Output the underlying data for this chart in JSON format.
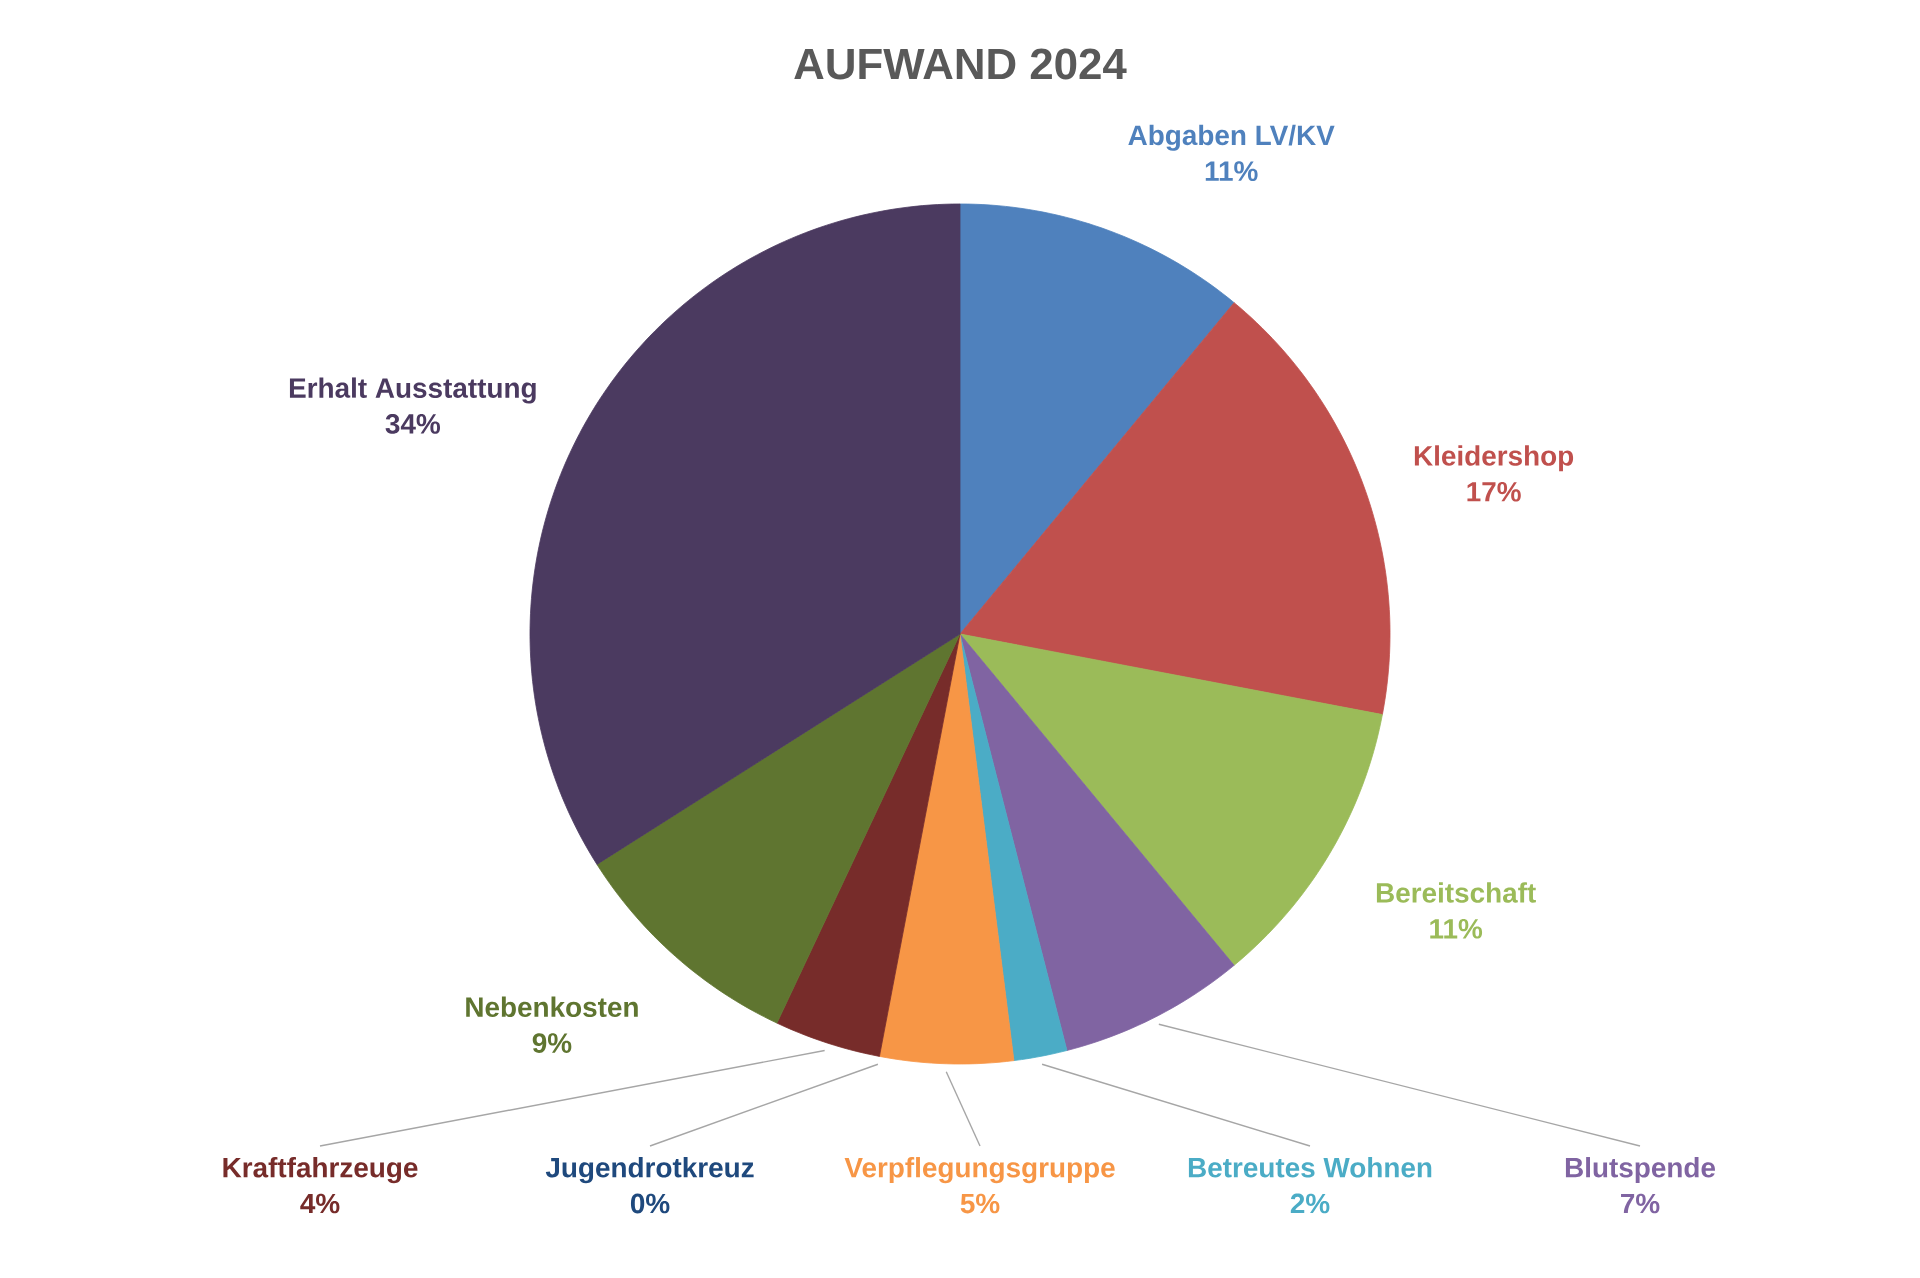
{
  "chart_data": {
    "type": "pie",
    "title": "AUFWAND 2024",
    "categories": [
      "Abgaben LV/KV",
      "Kleidershop",
      "Bereitschaft",
      "Blutspende",
      "Betreutes Wohnen",
      "Verpflegungsgruppe",
      "Jugendrotkreuz",
      "Kraftfahrzeuge",
      "Nebenkosten",
      "Erhalt Ausstattung"
    ],
    "values": [
      11,
      17,
      11,
      7,
      2,
      5,
      0,
      4,
      9,
      34
    ],
    "value_labels": [
      "11%",
      "17%",
      "11%",
      "7%",
      "2%",
      "5%",
      "0%",
      "4%",
      "9%",
      "34%"
    ],
    "colors": [
      "#4f81bd",
      "#c0504d",
      "#9bbb59",
      "#8064a2",
      "#4bacc6",
      "#f79646",
      "#1f497d",
      "#772c2a",
      "#5f7530",
      "#4b3a60"
    ]
  }
}
